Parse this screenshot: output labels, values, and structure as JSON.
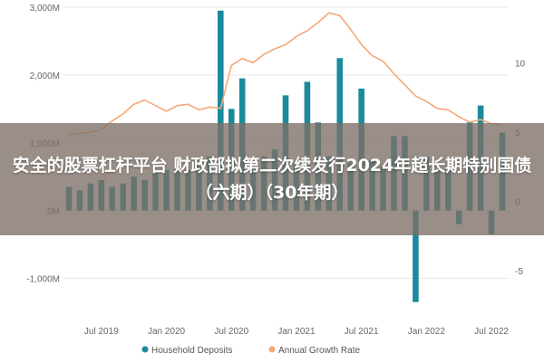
{
  "banner": {
    "text": "安全的股票杠杆平台 财政部拟第二次续发行2024年超长期特别国债（六期）（30年期）"
  },
  "colors": {
    "bar": "#1a8a9c",
    "line": "#f5a878",
    "banner_bg": "#7d7067"
  },
  "chart_data": {
    "type": "bar",
    "title": "",
    "xlabel": "",
    "ylabel_left": "",
    "ylabel_right": "",
    "y_left": {
      "ylim": [
        -1500,
        3000
      ],
      "ticks": [
        -1000,
        0,
        1000,
        2000,
        3000
      ],
      "tick_labels": [
        "-1,000M",
        "0M",
        "1,000M",
        "2,000M",
        "3,000M"
      ]
    },
    "y_right": {
      "ylim": [
        -8,
        14
      ],
      "ticks": [
        -5,
        0,
        5,
        10
      ],
      "tick_labels": [
        "-5",
        "0",
        "5",
        "10"
      ]
    },
    "x_tick_labels": [
      "Jul 2019",
      "Jan 2020",
      "Jul 2020",
      "Jan 2021",
      "Jul 2021",
      "Jan 2022",
      "Jul 2022"
    ],
    "x_tick_index": [
      3,
      9,
      15,
      21,
      27,
      33,
      39
    ],
    "categories": [
      "Apr 2019",
      "May 2019",
      "Jun 2019",
      "Jul 2019",
      "Aug 2019",
      "Sep 2019",
      "Oct 2019",
      "Nov 2019",
      "Dec 2019",
      "Jan 2020",
      "Feb 2020",
      "Mar 2020",
      "Apr 2020",
      "May 2020",
      "Jun 2020",
      "Jul 2020",
      "Aug 2020",
      "Sep 2020",
      "Oct 2020",
      "Nov 2020",
      "Dec 2020",
      "Jan 2021",
      "Feb 2021",
      "Mar 2021",
      "Apr 2021",
      "May 2021",
      "Jun 2021",
      "Jul 2021",
      "Aug 2021",
      "Sep 2021",
      "Oct 2021",
      "Nov 2021",
      "Dec 2021",
      "Jan 2022",
      "Feb 2022",
      "Mar 2022",
      "Apr 2022",
      "May 2022",
      "Jun 2022",
      "Jul 2022",
      "Aug 2022"
    ],
    "series": [
      {
        "name": "Household Deposits",
        "type": "bar",
        "axis": "left",
        "values": [
          350,
          300,
          400,
          450,
          350,
          400,
          500,
          450,
          550,
          600,
          650,
          600,
          700,
          800,
          2950,
          1500,
          1950,
          650,
          800,
          900,
          1700,
          700,
          1900,
          1300,
          800,
          2250,
          700,
          1800,
          750,
          650,
          1100,
          1100,
          -1350,
          800,
          600,
          600,
          -200,
          1300,
          1550,
          -350,
          1150
        ]
      },
      {
        "name": "Annual Growth Rate",
        "type": "line",
        "axis": "right",
        "values": [
          4.8,
          4.9,
          5.0,
          5.2,
          5.8,
          6.3,
          7.0,
          7.3,
          6.9,
          6.5,
          6.9,
          7.0,
          6.6,
          6.8,
          6.7,
          9.8,
          10.3,
          10.0,
          10.6,
          11.0,
          11.3,
          11.9,
          12.3,
          12.9,
          13.6,
          13.4,
          12.4,
          11.3,
          10.5,
          10.1,
          9.2,
          8.4,
          7.6,
          7.2,
          6.7,
          6.6,
          6.1,
          5.7,
          5.9,
          5.6,
          5.5
        ]
      }
    ],
    "legend": {
      "position": "bottom",
      "entries": [
        "Household Deposits",
        "Annual Growth Rate"
      ]
    },
    "grid": true
  }
}
